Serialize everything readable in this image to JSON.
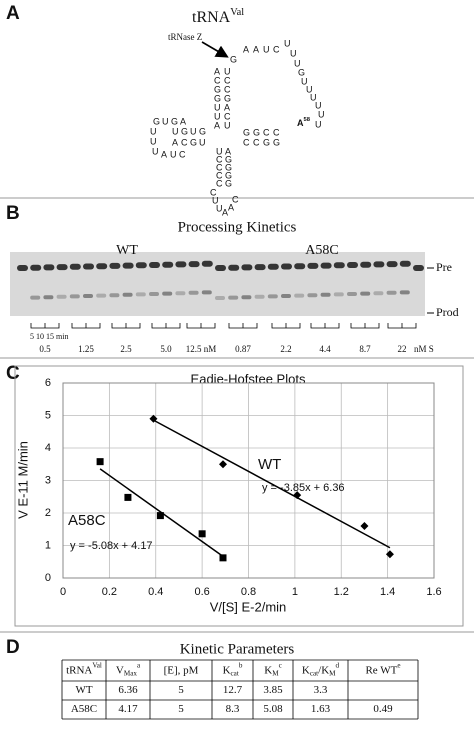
{
  "panel_labels": [
    "A",
    "B",
    "C",
    "D"
  ],
  "trna": {
    "title": [
      {
        "text": "tRNA"
      },
      {
        "text": "Val",
        "shift": "sup"
      }
    ],
    "enzyme": "tRNase Z",
    "strands": [
      "GAAUCUU",
      "UGUUUUUU",
      "ACGGUUA",
      "UCCGACU",
      "GGCC",
      "CCGG",
      "GUGA",
      "UGUG",
      "ACGU",
      "UUUAUC",
      "UCCCC",
      "AGGGG",
      "CUUAAC"
    ],
    "mutation": [
      {
        "text": "A"
      },
      {
        "text": "58",
        "shift": "sup"
      }
    ]
  },
  "gel": {
    "title": "Processing Kinetics",
    "groups": [
      "WT",
      "A58C"
    ],
    "bands": [
      "Pre",
      "Prod"
    ],
    "time_label": "5 10 15 min",
    "concentrations": [
      "0.5",
      "1.25",
      "2.5",
      "5.0",
      "12.5 nM",
      "0.87",
      "2.2",
      "4.4",
      "8.7",
      "22"
    ],
    "standard_label": "nM S"
  },
  "chart_data": {
    "type": "scatter",
    "title": "Eadie-Hofstee Plots",
    "x_label": "V/[S] E-2/min",
    "y_label": "V  E-11 M/min",
    "xlim": [
      0,
      1.6
    ],
    "xticks": [
      0,
      0.2,
      0.4,
      0.6,
      0.8,
      1,
      1.2,
      1.4,
      1.6
    ],
    "ylim": [
      0,
      6
    ],
    "yticks": [
      0,
      1,
      2,
      3,
      4,
      5,
      6
    ],
    "grid": true,
    "series": [
      {
        "name": "WT",
        "color": "#000000",
        "marker": "diamond",
        "x": [
          0.39,
          0.69,
          1.01,
          1.3,
          1.41
        ],
        "values": [
          4.9,
          3.5,
          2.55,
          1.6,
          0.73
        ],
        "fit": {
          "slope": -3.85,
          "intercept": 6.36,
          "label": "y = -3.85x + 6.36"
        }
      },
      {
        "name": "A58C",
        "color": "#000000",
        "marker": "square",
        "x": [
          0.16,
          0.28,
          0.42,
          0.6,
          0.69
        ],
        "values": [
          3.58,
          2.48,
          1.92,
          1.36,
          0.62
        ],
        "fit": {
          "slope": -5.08,
          "intercept": 4.17,
          "label": "y = -5.08x + 4.17"
        }
      }
    ]
  },
  "table": {
    "title": "Kinetic Parameters",
    "header": [
      [
        {
          "text": "tRNA"
        },
        {
          "text": "Val",
          "shift": "sup"
        }
      ],
      [
        {
          "text": "V"
        },
        {
          "text": "Max",
          "shift": "sub"
        },
        {
          "text": "a",
          "shift": "sup"
        }
      ],
      [
        {
          "text": "[E], pM"
        }
      ],
      [
        {
          "text": "K"
        },
        {
          "text": "cat",
          "shift": "sub"
        },
        {
          "text": "b",
          "shift": "sup"
        }
      ],
      [
        {
          "text": "K"
        },
        {
          "text": "M",
          "shift": "sub"
        },
        {
          "text": "c",
          "shift": "sup"
        }
      ],
      [
        {
          "text": "K"
        },
        {
          "text": "cat",
          "shift": "sub"
        },
        {
          "text": "/K"
        },
        {
          "text": "M",
          "shift": "sub"
        },
        {
          "text": "d",
          "shift": "sup"
        }
      ],
      [
        {
          "text": "Re WT"
        },
        {
          "text": "e",
          "shift": "sup"
        }
      ]
    ],
    "rows": [
      [
        "WT",
        6.36,
        5,
        12.7,
        3.85,
        3.3,
        null
      ],
      [
        "A58C",
        4.17,
        5,
        8.3,
        5.08,
        1.63,
        0.49
      ]
    ]
  }
}
